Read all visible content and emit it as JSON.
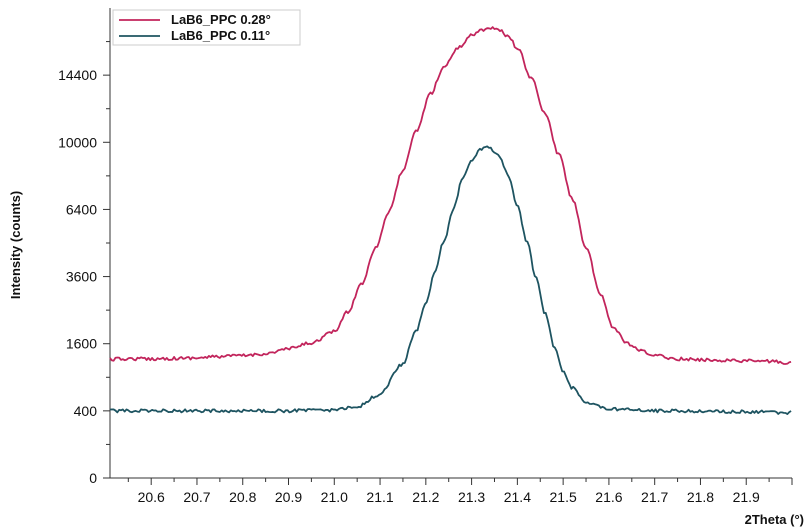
{
  "chart_data": {
    "type": "line",
    "xlabel": "2Theta (°)",
    "ylabel": "Intensity (counts)",
    "xlim": [
      20.51,
      22.0
    ],
    "y_scale": "sqrt",
    "ylim": [
      0,
      19600
    ],
    "x_ticks": [
      "20.6",
      "20.7",
      "20.8",
      "20.9",
      "21.0",
      "21.1",
      "21.2",
      "21.3",
      "21.4",
      "21.5",
      "21.6",
      "21.7",
      "21.8",
      "21.9"
    ],
    "x_tick_values": [
      20.6,
      20.7,
      20.8,
      20.9,
      21.0,
      21.1,
      21.2,
      21.3,
      21.4,
      21.5,
      21.6,
      21.7,
      21.8,
      21.9
    ],
    "y_ticks": [
      "0",
      "400",
      "1600",
      "3600",
      "6400",
      "10000",
      "14400"
    ],
    "y_tick_values": [
      0,
      400,
      1600,
      3600,
      6400,
      10000,
      14400
    ],
    "legend_position": "top-left",
    "grid": false,
    "series": [
      {
        "name": "LaB6_PPC 0.28°",
        "color": "#c2255c",
        "x": [
          20.51,
          20.55,
          20.6,
          20.65,
          20.7,
          20.75,
          20.8,
          20.85,
          20.9,
          20.95,
          21.0,
          21.03,
          21.06,
          21.09,
          21.12,
          21.15,
          21.18,
          21.21,
          21.24,
          21.27,
          21.3,
          21.32,
          21.34,
          21.36,
          21.38,
          21.4,
          21.43,
          21.46,
          21.49,
          21.52,
          21.55,
          21.58,
          21.61,
          21.64,
          21.67,
          21.7,
          21.75,
          21.8,
          21.85,
          21.9,
          21.95,
          22.0
        ],
        "y": [
          1250,
          1260,
          1260,
          1270,
          1280,
          1310,
          1330,
          1370,
          1480,
          1620,
          1900,
          2450,
          3350,
          4700,
          6300,
          8400,
          10700,
          13100,
          15000,
          16400,
          17400,
          17800,
          18000,
          17800,
          17300,
          16400,
          14200,
          11800,
          9300,
          6900,
          4700,
          3000,
          2000,
          1600,
          1430,
          1330,
          1260,
          1240,
          1230,
          1220,
          1210,
          1170
        ]
      },
      {
        "name": "LaB6_PPC 0.11°",
        "color": "#1e5461",
        "x": [
          20.51,
          20.6,
          20.7,
          20.8,
          20.9,
          21.0,
          21.05,
          21.1,
          21.15,
          21.18,
          21.2,
          21.22,
          21.24,
          21.26,
          21.28,
          21.3,
          21.32,
          21.33,
          21.34,
          21.36,
          21.38,
          21.4,
          21.42,
          21.44,
          21.46,
          21.48,
          21.5,
          21.52,
          21.55,
          21.6,
          21.7,
          21.8,
          21.9,
          22.0
        ],
        "y": [
          400,
          400,
          400,
          400,
          400,
          410,
          450,
          620,
          1150,
          1950,
          2700,
          3800,
          5000,
          6400,
          7900,
          9000,
          9600,
          9700,
          9650,
          9200,
          8100,
          6600,
          5000,
          3600,
          2400,
          1550,
          1000,
          720,
          500,
          420,
          400,
          395,
          390,
          380
        ]
      }
    ]
  }
}
